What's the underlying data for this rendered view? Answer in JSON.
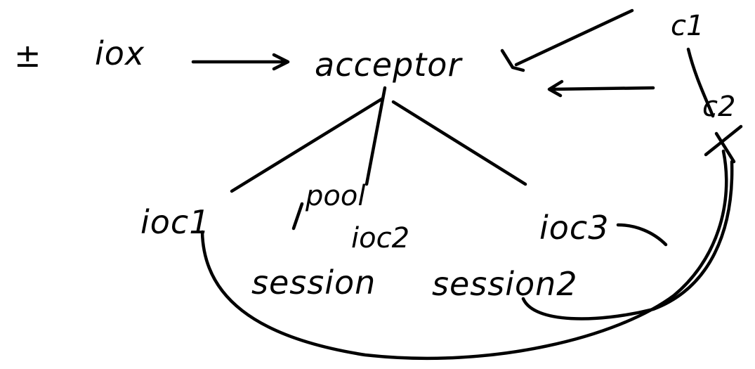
{
  "diagram": {
    "nodes": {
      "io_symbol": "±",
      "iox": "iox",
      "acceptor": "acceptor",
      "c1": "c1",
      "c2": "c2",
      "ioc1": "ioc1",
      "pool": "pool",
      "ioc2": "ioc2",
      "ioc3": "ioc3",
      "session": "session",
      "session2": "session2"
    }
  }
}
